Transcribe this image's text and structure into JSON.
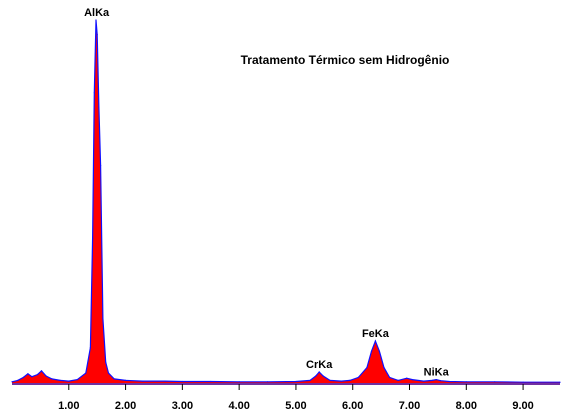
{
  "chart_data": {
    "type": "area",
    "title": "Tratamento Térmico sem Hidrogênio",
    "xlabel": "",
    "ylabel": "",
    "xlim": [
      0.0,
      9.65
    ],
    "ylim": [
      0,
      100
    ],
    "x_ticks": [
      "1.00",
      "2.00",
      "3.00",
      "4.00",
      "5.00",
      "6.00",
      "7.00",
      "8.00",
      "9.00"
    ],
    "peaks": [
      {
        "label": "AlKa",
        "x": 1.49,
        "y": 100
      },
      {
        "label": "CrKa",
        "x": 5.41,
        "y": 3.3
      },
      {
        "label": "FeKa",
        "x": 6.4,
        "y": 11.8
      },
      {
        "label": "NiKa",
        "x": 7.47,
        "y": 1.2
      }
    ],
    "spectrum": [
      [
        0.0,
        0.6
      ],
      [
        0.1,
        1.0
      ],
      [
        0.2,
        1.8
      ],
      [
        0.28,
        2.8
      ],
      [
        0.35,
        2.0
      ],
      [
        0.45,
        2.6
      ],
      [
        0.52,
        3.6
      ],
      [
        0.6,
        2.2
      ],
      [
        0.7,
        1.4
      ],
      [
        0.85,
        1.0
      ],
      [
        1.0,
        0.8
      ],
      [
        1.15,
        1.2
      ],
      [
        1.3,
        3.0
      ],
      [
        1.38,
        10.0
      ],
      [
        1.42,
        40.0
      ],
      [
        1.45,
        80.0
      ],
      [
        1.48,
        100.0
      ],
      [
        1.5,
        96.0
      ],
      [
        1.53,
        76.0
      ],
      [
        1.56,
        60.0
      ],
      [
        1.6,
        18.0
      ],
      [
        1.65,
        6.0
      ],
      [
        1.7,
        3.0
      ],
      [
        1.8,
        1.4
      ],
      [
        2.0,
        1.0
      ],
      [
        2.3,
        0.8
      ],
      [
        2.7,
        0.8
      ],
      [
        3.0,
        0.7
      ],
      [
        3.5,
        0.7
      ],
      [
        4.0,
        0.6
      ],
      [
        4.5,
        0.6
      ],
      [
        5.0,
        0.7
      ],
      [
        5.25,
        1.0
      ],
      [
        5.35,
        2.2
      ],
      [
        5.41,
        3.3
      ],
      [
        5.48,
        2.2
      ],
      [
        5.6,
        1.0
      ],
      [
        5.8,
        0.8
      ],
      [
        5.95,
        1.0
      ],
      [
        6.1,
        1.8
      ],
      [
        6.25,
        4.5
      ],
      [
        6.33,
        9.0
      ],
      [
        6.4,
        11.8
      ],
      [
        6.47,
        9.0
      ],
      [
        6.55,
        4.5
      ],
      [
        6.65,
        1.8
      ],
      [
        6.8,
        1.0
      ],
      [
        6.95,
        1.6
      ],
      [
        7.05,
        1.2
      ],
      [
        7.25,
        0.8
      ],
      [
        7.4,
        1.0
      ],
      [
        7.47,
        1.2
      ],
      [
        7.55,
        0.9
      ],
      [
        7.7,
        0.7
      ],
      [
        8.0,
        0.6
      ],
      [
        8.5,
        0.6
      ],
      [
        9.0,
        0.5
      ],
      [
        9.65,
        0.5
      ]
    ],
    "colors": {
      "fill": "#ff0000",
      "outline": "#1010ff",
      "baseline": "#7030a0"
    },
    "grid": false,
    "legend": "none"
  }
}
